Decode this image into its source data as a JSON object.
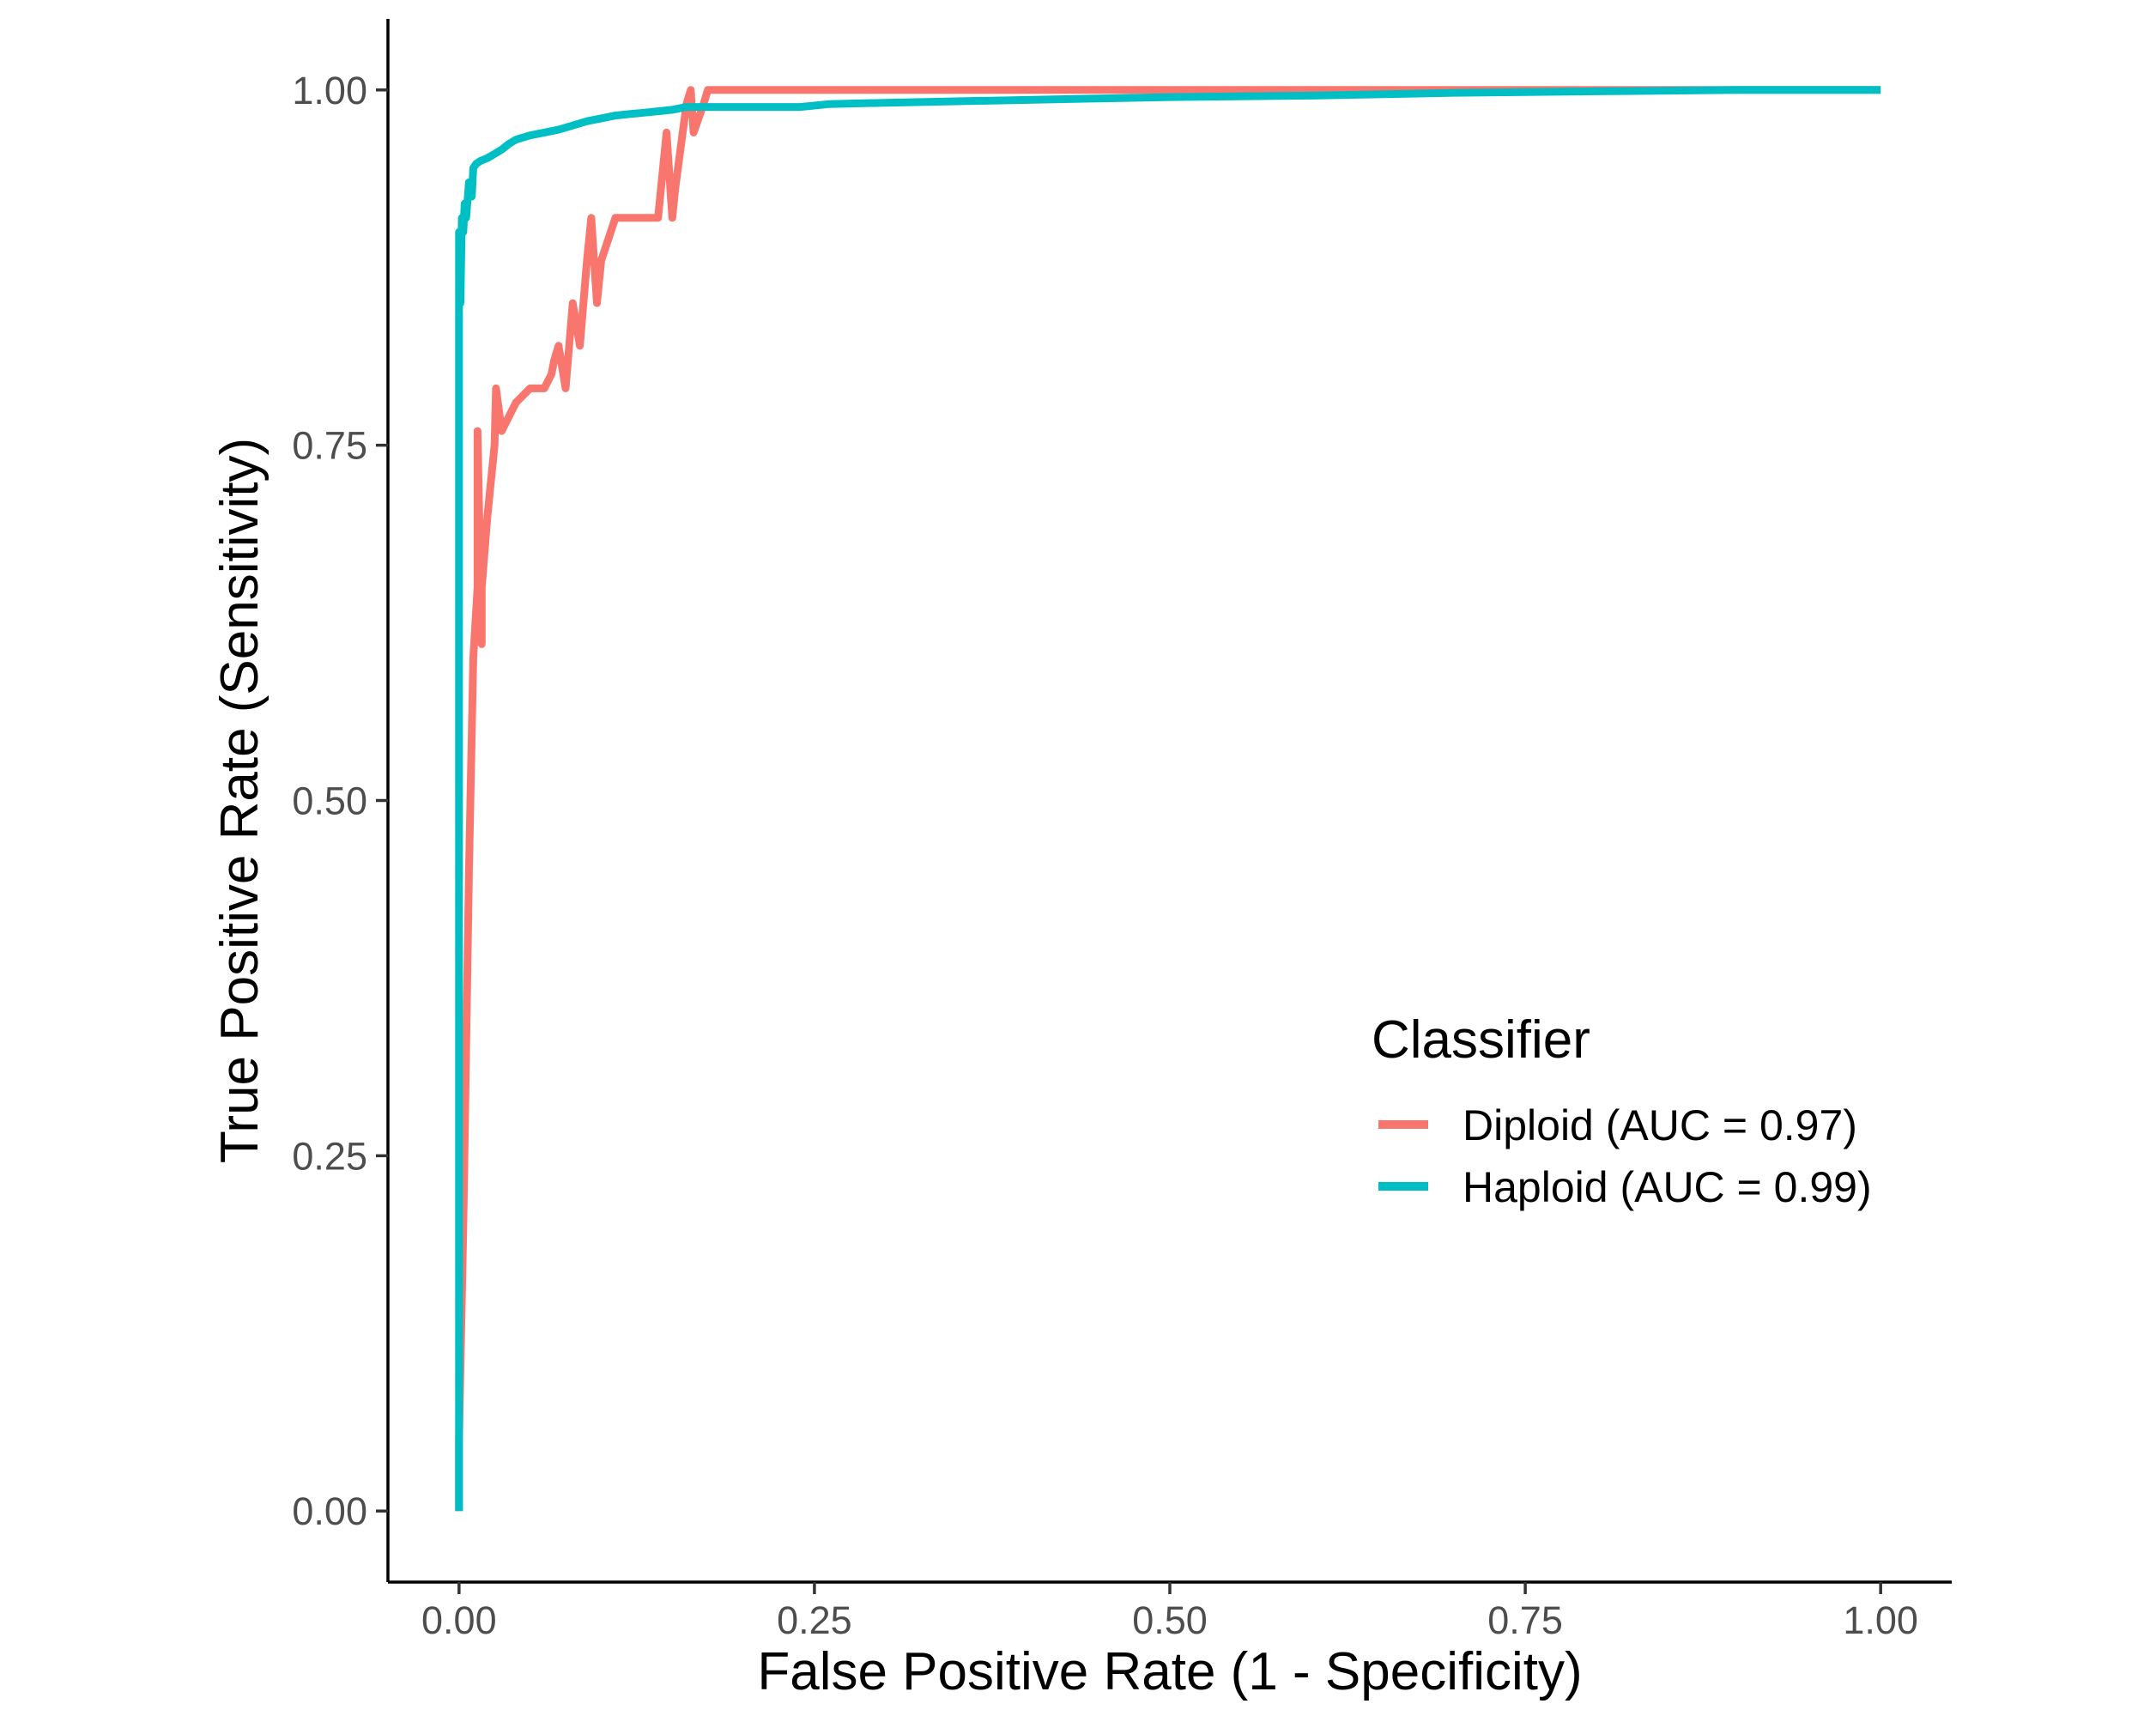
{
  "chart_data": {
    "type": "line",
    "xlabel": "False Positive Rate (1 - Specificity)",
    "ylabel": "True Positive Rate (Sensitivity)",
    "xlim": [
      -0.05,
      1.05
    ],
    "ylim": [
      -0.05,
      1.05
    ],
    "x_ticks": [
      "0.00",
      "0.25",
      "0.50",
      "0.75",
      "1.00"
    ],
    "y_ticks": [
      "0.00",
      "0.25",
      "0.50",
      "0.75",
      "1.00"
    ],
    "grid": false,
    "legend": {
      "title": "Classifier",
      "placement": "right-center-inside"
    },
    "series": [
      {
        "name": "Diploid (AUC = 0.97)",
        "color": "#F8766D",
        "x": [
          0.0,
          0.0,
          0.003,
          0.007,
          0.01,
          0.013,
          0.013,
          0.016,
          0.016,
          0.02,
          0.025,
          0.026,
          0.03,
          0.04,
          0.05,
          0.06,
          0.065,
          0.067,
          0.07,
          0.075,
          0.08,
          0.085,
          0.09,
          0.093,
          0.097,
          0.1,
          0.11,
          0.12,
          0.13,
          0.14,
          0.146,
          0.15,
          0.152,
          0.16,
          0.163,
          0.165,
          0.172,
          0.175,
          0.18,
          0.25,
          0.5,
          0.75,
          1.0
        ],
        "y": [
          0.0,
          0.05,
          0.2,
          0.45,
          0.6,
          0.65,
          0.76,
          0.61,
          0.65,
          0.7,
          0.75,
          0.79,
          0.76,
          0.78,
          0.79,
          0.79,
          0.8,
          0.81,
          0.82,
          0.79,
          0.85,
          0.82,
          0.88,
          0.91,
          0.85,
          0.88,
          0.91,
          0.91,
          0.91,
          0.91,
          0.97,
          0.91,
          0.93,
          0.99,
          1.0,
          0.97,
          0.99,
          1.0,
          1.0,
          1.0,
          1.0,
          1.0,
          1.0
        ]
      },
      {
        "name": "Haploid (AUC = 0.99)",
        "color": "#00BFC4",
        "x": [
          0.0,
          0.0,
          0.001,
          0.002,
          0.003,
          0.004,
          0.005,
          0.007,
          0.009,
          0.01,
          0.012,
          0.015,
          0.02,
          0.025,
          0.03,
          0.035,
          0.04,
          0.05,
          0.06,
          0.07,
          0.08,
          0.09,
          0.1,
          0.11,
          0.12,
          0.13,
          0.14,
          0.15,
          0.16,
          0.2,
          0.24,
          0.26,
          0.3,
          0.35,
          0.4,
          0.45,
          0.5,
          0.6,
          0.7,
          0.8,
          0.9,
          1.0
        ],
        "y": [
          0.0,
          0.9,
          0.85,
          0.91,
          0.9,
          0.92,
          0.91,
          0.935,
          0.925,
          0.945,
          0.948,
          0.95,
          0.952,
          0.955,
          0.958,
          0.962,
          0.965,
          0.968,
          0.97,
          0.972,
          0.975,
          0.978,
          0.98,
          0.982,
          0.983,
          0.984,
          0.985,
          0.986,
          0.988,
          0.988,
          0.988,
          0.99,
          0.991,
          0.992,
          0.993,
          0.994,
          0.995,
          0.996,
          0.998,
          0.999,
          1.0,
          1.0
        ]
      }
    ]
  }
}
